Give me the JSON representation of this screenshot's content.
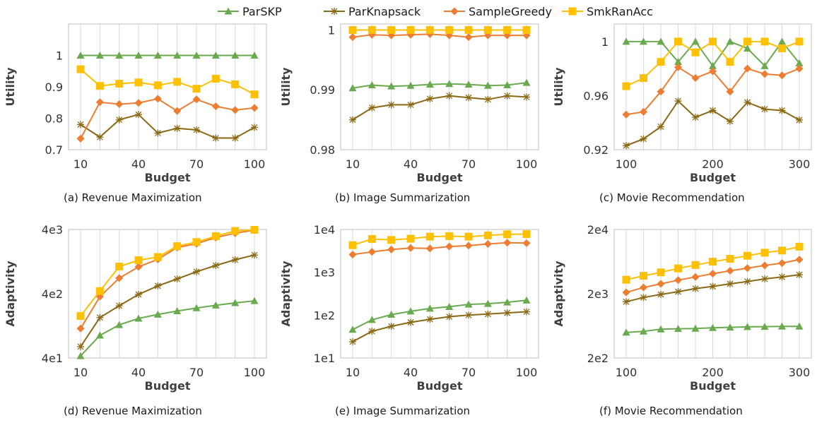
{
  "legend": [
    {
      "name": "ParSKP",
      "color": "#6aaa4f",
      "marker": "triangle"
    },
    {
      "name": "ParKnapsack",
      "color": "#8b6914",
      "marker": "asterisk"
    },
    {
      "name": "SampleGreedy",
      "color": "#ed7d31",
      "marker": "diamond"
    },
    {
      "name": "SmkRanAcc",
      "color": "#ffc000",
      "marker": "square"
    }
  ],
  "chart_data": [
    {
      "type": "line",
      "caption": "(a) Revenue Maximization",
      "xlabel": "Budget",
      "ylabel": "Utility",
      "scale": "linear",
      "x": [
        10,
        20,
        30,
        40,
        50,
        60,
        70,
        80,
        90,
        100
      ],
      "xticks": [
        10,
        40,
        70,
        100
      ],
      "ylim": [
        0.7,
        1.1
      ],
      "yticks": [
        0.7,
        0.8,
        0.9,
        1.0
      ],
      "ytick_labels": [
        "0.7",
        "0.8",
        "0.9",
        "1"
      ],
      "grid": "vertical",
      "series": [
        {
          "name": "ParSKP",
          "values": [
            1.0,
            1.0,
            1.0,
            1.0,
            1.0,
            1.0,
            1.0,
            1.0,
            1.0,
            1.0
          ]
        },
        {
          "name": "ParKnapsack",
          "values": [
            0.78,
            0.74,
            0.795,
            0.812,
            0.753,
            0.768,
            0.763,
            0.737,
            0.737,
            0.771
          ]
        },
        {
          "name": "SampleGreedy",
          "values": [
            0.735,
            0.851,
            0.845,
            0.849,
            0.862,
            0.823,
            0.86,
            0.838,
            0.826,
            0.833
          ]
        },
        {
          "name": "SmkRanAcc",
          "values": [
            0.956,
            0.903,
            0.91,
            0.914,
            0.905,
            0.916,
            0.894,
            0.926,
            0.908,
            0.876
          ]
        }
      ]
    },
    {
      "type": "line",
      "caption": "(b) Image Summarization",
      "xlabel": "Budget",
      "ylabel": "Utility",
      "scale": "linear",
      "x": [
        10,
        20,
        30,
        40,
        50,
        60,
        70,
        80,
        90,
        100
      ],
      "xticks": [
        10,
        40,
        70,
        100
      ],
      "ylim": [
        0.98,
        1.001
      ],
      "yticks": [
        0.98,
        0.99,
        1.0
      ],
      "ytick_labels": [
        "0.98",
        "0.99",
        "1"
      ],
      "grid": "vertical",
      "series": [
        {
          "name": "ParSKP",
          "values": [
            0.9903,
            0.9908,
            0.9906,
            0.9907,
            0.9909,
            0.991,
            0.9909,
            0.9907,
            0.9908,
            0.9912
          ]
        },
        {
          "name": "ParKnapsack",
          "values": [
            0.985,
            0.987,
            0.9875,
            0.9875,
            0.9885,
            0.989,
            0.9887,
            0.9884,
            0.989,
            0.9888
          ]
        },
        {
          "name": "SampleGreedy",
          "values": [
            0.9988,
            0.9992,
            0.9991,
            0.9992,
            0.9993,
            0.9991,
            0.9988,
            0.9991,
            0.9991,
            0.9991
          ]
        },
        {
          "name": "SmkRanAcc",
          "values": [
            1.0,
            1.0,
            1.0,
            1.0,
            1.0,
            1.0,
            1.0,
            1.0,
            1.0,
            1.0
          ]
        }
      ]
    },
    {
      "type": "line",
      "caption": "(c) Movie Recommendation",
      "xlabel": "Budget",
      "ylabel": "Utility",
      "scale": "linear",
      "x": [
        100,
        120,
        140,
        160,
        180,
        200,
        220,
        240,
        260,
        280,
        300
      ],
      "xticks": [
        100,
        200,
        300
      ],
      "ylim": [
        0.92,
        1.013
      ],
      "yticks": [
        0.92,
        0.96,
        1.0
      ],
      "ytick_labels": [
        "0.92",
        "0.96",
        "1"
      ],
      "grid": "vertical",
      "series": [
        {
          "name": "ParSKP",
          "values": [
            1.0,
            1.0,
            1.0,
            0.985,
            1.0,
            0.982,
            1.0,
            0.995,
            0.982,
            1.0,
            0.984
          ]
        },
        {
          "name": "ParKnapsack",
          "values": [
            0.923,
            0.928,
            0.937,
            0.956,
            0.944,
            0.949,
            0.941,
            0.955,
            0.95,
            0.949,
            0.942
          ]
        },
        {
          "name": "SampleGreedy",
          "values": [
            0.946,
            0.948,
            0.963,
            0.981,
            0.973,
            0.978,
            0.963,
            0.98,
            0.976,
            0.975,
            0.98
          ]
        },
        {
          "name": "SmkRanAcc",
          "values": [
            0.967,
            0.973,
            0.985,
            1.0,
            0.992,
            1.0,
            0.985,
            1.0,
            1.0,
            0.995,
            1.0
          ]
        }
      ]
    },
    {
      "type": "line",
      "caption": "(d) Revenue Maximization",
      "xlabel": "Budget",
      "ylabel": "Adaptivity",
      "scale": "log",
      "x": [
        10,
        20,
        30,
        40,
        50,
        60,
        70,
        80,
        90,
        100
      ],
      "xticks": [
        10,
        40,
        70,
        100
      ],
      "ylim": [
        40,
        4000
      ],
      "yticks": [
        40,
        400,
        4000
      ],
      "ytick_labels": [
        "4e1",
        "4e2",
        "4e3"
      ],
      "grid": "vertical",
      "series": [
        {
          "name": "ParSKP",
          "values": [
            43,
            90,
            131,
            165,
            190,
            215,
            240,
            264,
            288,
            310
          ]
        },
        {
          "name": "ParKnapsack",
          "values": [
            60,
            170,
            260,
            390,
            530,
            680,
            880,
            1100,
            1350,
            1600
          ]
        },
        {
          "name": "SampleGreedy",
          "values": [
            115,
            360,
            700,
            1050,
            1370,
            2100,
            2400,
            3000,
            3500,
            3900
          ]
        },
        {
          "name": "SmkRanAcc",
          "values": [
            180,
            440,
            1060,
            1330,
            1490,
            2200,
            2550,
            3150,
            3800,
            3950
          ]
        }
      ]
    },
    {
      "type": "line",
      "caption": "(e) Image Summarization",
      "xlabel": "Budget",
      "ylabel": "Adaptivity",
      "scale": "log",
      "x": [
        10,
        20,
        30,
        40,
        50,
        60,
        70,
        80,
        90,
        100
      ],
      "xticks": [
        10,
        40,
        70,
        100
      ],
      "ylim": [
        10,
        10000
      ],
      "yticks": [
        10,
        100,
        1000,
        10000
      ],
      "ytick_labels": [
        "1e1",
        "1e2",
        "1e3",
        "1e4"
      ],
      "grid": "vertical",
      "series": [
        {
          "name": "ParSKP",
          "values": [
            46,
            78,
            103,
            123,
            143,
            157,
            178,
            185,
            200,
            222
          ]
        },
        {
          "name": "ParKnapsack",
          "values": [
            24,
            42,
            55,
            68,
            80,
            92,
            100,
            106,
            113,
            120
          ]
        },
        {
          "name": "SampleGreedy",
          "values": [
            2600,
            3000,
            3400,
            3700,
            3600,
            4000,
            4200,
            4600,
            4900,
            4800
          ]
        },
        {
          "name": "SmkRanAcc",
          "values": [
            4300,
            6000,
            5700,
            6100,
            6800,
            7000,
            6800,
            7300,
            7700,
            7800
          ]
        }
      ]
    },
    {
      "type": "line",
      "caption": "(f) Movie Recommendation",
      "xlabel": "Budget",
      "ylabel": "Adaptivity",
      "scale": "log",
      "x": [
        100,
        120,
        140,
        160,
        180,
        200,
        220,
        240,
        260,
        280,
        300
      ],
      "xticks": [
        100,
        200,
        300
      ],
      "ylim": [
        200,
        20000
      ],
      "yticks": [
        200,
        2000,
        20000
      ],
      "ytick_labels": [
        "2e2",
        "2e3",
        "2e4"
      ],
      "grid": "vertical",
      "series": [
        {
          "name": "ParSKP",
          "values": [
            500,
            520,
            560,
            570,
            575,
            590,
            600,
            610,
            615,
            620,
            620
          ]
        },
        {
          "name": "ParKnapsack",
          "values": [
            1500,
            1750,
            1950,
            2150,
            2400,
            2600,
            2850,
            3100,
            3400,
            3650,
            3950
          ]
        },
        {
          "name": "SampleGreedy",
          "values": [
            2100,
            2500,
            2850,
            3250,
            3650,
            4100,
            4550,
            5000,
            5500,
            6000,
            6800
          ]
        },
        {
          "name": "SmkRanAcc",
          "values": [
            3300,
            3800,
            4300,
            4950,
            5600,
            6300,
            7000,
            7800,
            8700,
            9400,
            10800
          ]
        }
      ]
    }
  ]
}
